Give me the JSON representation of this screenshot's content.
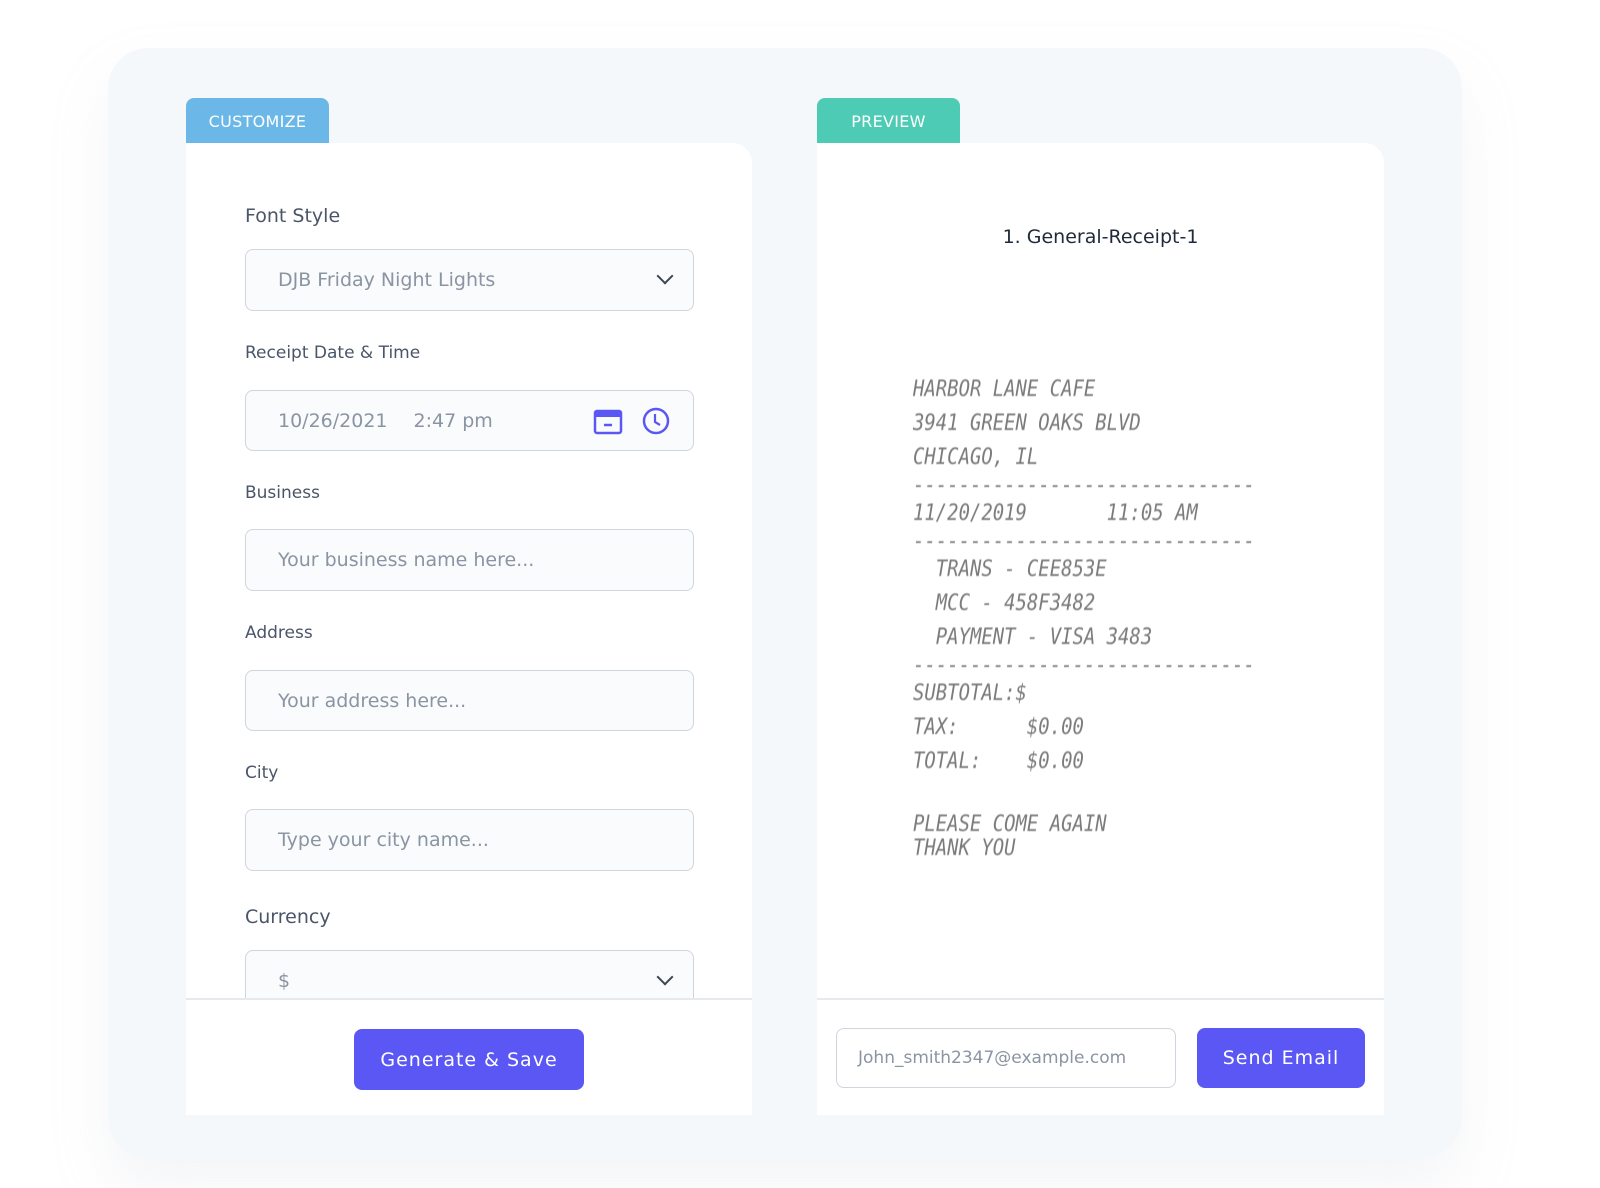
{
  "customize": {
    "tab": "CUSTOMIZE",
    "font_style": {
      "label": "Font Style",
      "value": "DJB Friday Night Lights"
    },
    "datetime": {
      "label": "Receipt Date & Time",
      "date": "10/26/2021",
      "time": "2:47 pm"
    },
    "business": {
      "label": "Business",
      "placeholder": "Your business name here..."
    },
    "address": {
      "label": "Address",
      "placeholder": "Your address here..."
    },
    "city": {
      "label": "City",
      "placeholder": "Type your city name..."
    },
    "currency": {
      "label": "Currency",
      "value": "$"
    },
    "generate_label": "Generate & Save"
  },
  "preview": {
    "tab": "PREVIEW",
    "title": "1. General-Receipt-1",
    "receipt_lines": [
      "HARBOR LANE CAFE",
      "3941 GREEN OAKS BLVD",
      "CHICAGO, IL",
      "------------------------------",
      "11/20/2019       11:05 AM",
      "------------------------------",
      "  TRANS - CEE853E",
      "  MCC - 458F3482",
      "  PAYMENT - VISA 3483",
      "------------------------------",
      "SUBTOTAL:$",
      "TAX:      $0.00",
      "TOTAL:    $0.00",
      "",
      "PLEASE COME AGAIN",
      "THANK YOU"
    ],
    "email_value": "John_smith2347@example.com",
    "send_label": "Send Email"
  },
  "colors": {
    "customize_tab": "#6bb8e8",
    "preview_tab": "#4ecbb4",
    "accent": "#5b57f5"
  }
}
